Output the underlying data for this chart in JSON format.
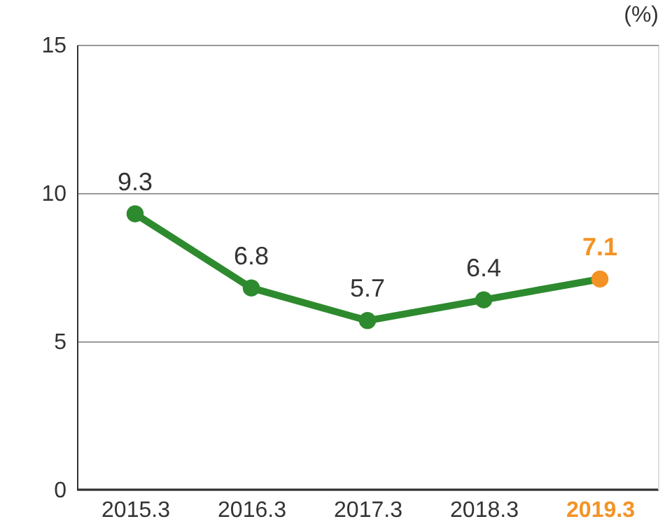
{
  "chart_data": {
    "type": "line",
    "ylabel": "(%)",
    "categories": [
      "2015.3",
      "2016.3",
      "2017.3",
      "2018.3",
      "2019.3"
    ],
    "series": [
      {
        "color": "#2e8a2e",
        "values": [
          9.3,
          6.8,
          5.7,
          6.4,
          7.1
        ],
        "colors": [
          "#2e8a2e",
          "#2e8a2e",
          "#2e8a2e",
          "#2e8a2e",
          "#f39325"
        ]
      }
    ],
    "ylim": [
      0,
      15
    ],
    "yticks": [
      0,
      5,
      10,
      15
    ],
    "grid": "y",
    "marker": "circle",
    "line_style": "solid",
    "data_labels": true
  }
}
